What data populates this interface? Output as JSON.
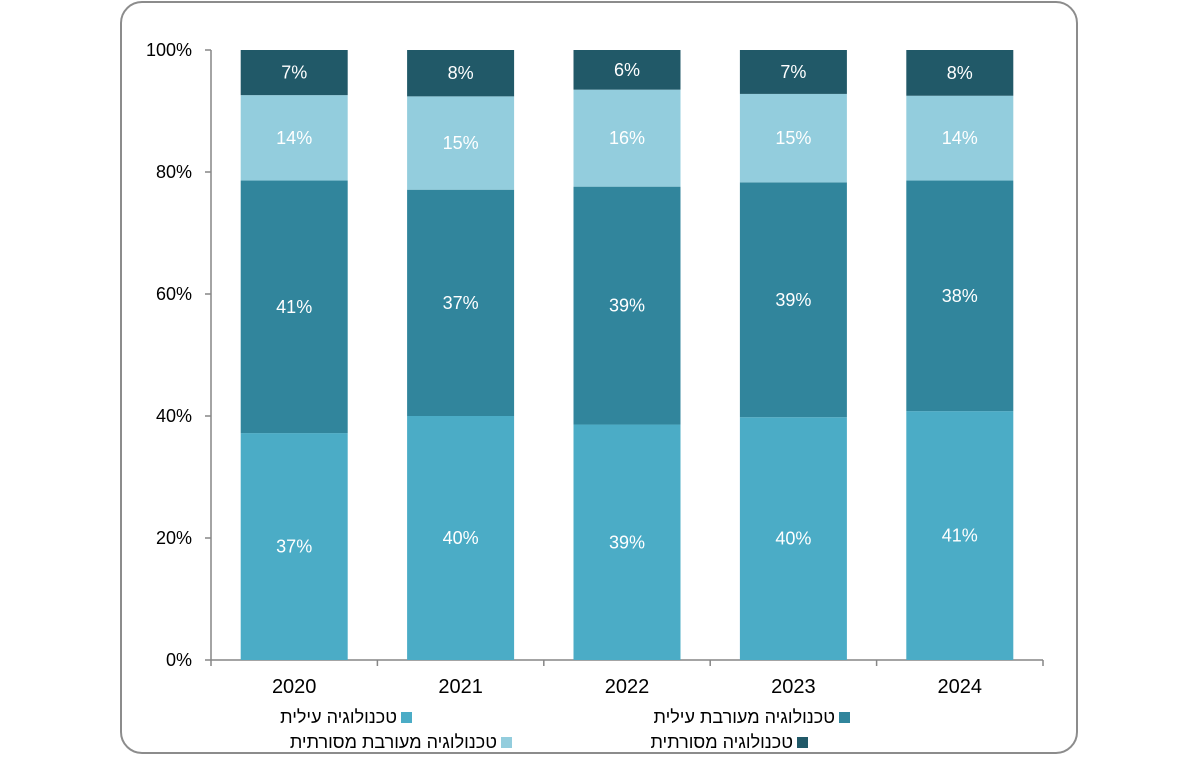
{
  "chart_data": {
    "type": "bar",
    "stacked": true,
    "categories": [
      "2020",
      "2021",
      "2022",
      "2023",
      "2024"
    ],
    "series": [
      {
        "name": "טכנולוגיה עילית",
        "color": "#4bacc6",
        "values": [
          37.2,
          40.0,
          38.6,
          39.8,
          40.8
        ],
        "labels": [
          "37%",
          "40%",
          "39%",
          "40%",
          "41%"
        ]
      },
      {
        "name": "טכנולוגיה מעורבת עילית",
        "color": "#31859c",
        "values": [
          41.4,
          37.1,
          39.0,
          38.5,
          37.8
        ],
        "labels": [
          "41%",
          "37%",
          "39%",
          "39%",
          "38%"
        ]
      },
      {
        "name": "טכנולוגיה מעורבת מסורתית",
        "color": "#93cddd",
        "values": [
          14.0,
          15.3,
          15.9,
          14.5,
          13.9
        ],
        "labels": [
          "14%",
          "15%",
          "16%",
          "15%",
          "14%"
        ]
      },
      {
        "name": "טכנולוגיה מסורתית",
        "color": "#215968",
        "values": [
          7.4,
          7.6,
          6.5,
          7.2,
          7.5
        ],
        "labels": [
          "7%",
          "8%",
          "6%",
          "7%",
          "8%"
        ]
      }
    ],
    "ylim": [
      0,
      100
    ],
    "yticks": [
      "0%",
      "20%",
      "40%",
      "60%",
      "80%",
      "100%"
    ],
    "grid": false,
    "legend_position": "bottom"
  }
}
